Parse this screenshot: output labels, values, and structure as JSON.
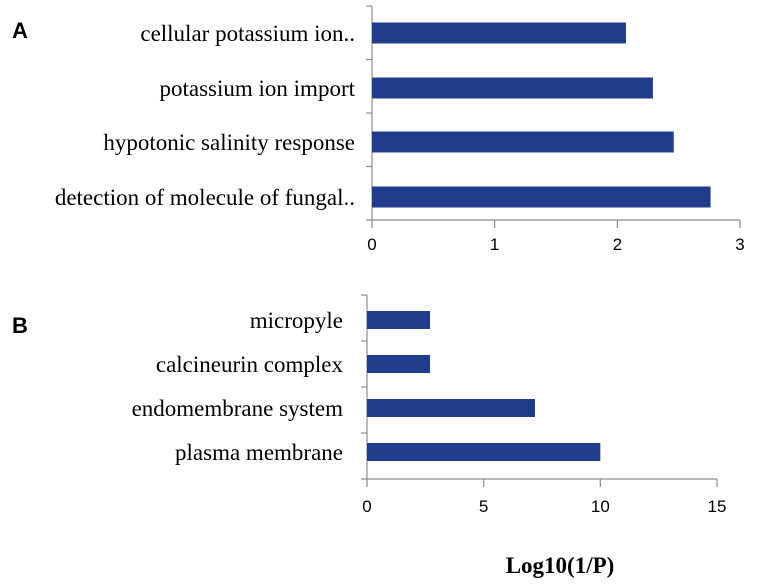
{
  "colors": {
    "bar": "#1f3d8a",
    "axis": "#8c8c8c"
  },
  "xlabel": "Log10(1/P)",
  "chart_data": [
    {
      "panel": "A",
      "type": "bar",
      "orientation": "horizontal",
      "categories": [
        "cellular potassium ion..",
        "potassium ion import",
        "hypotonic salinity response",
        "detection of molecule of fungal.."
      ],
      "values": [
        2.07,
        2.29,
        2.46,
        2.76
      ],
      "xlim": [
        0,
        3
      ],
      "xticks": [
        0,
        1,
        2,
        3
      ],
      "grid": false
    },
    {
      "panel": "B",
      "type": "bar",
      "orientation": "horizontal",
      "categories": [
        "micropyle",
        "calcineurin complex",
        "endomembrane system",
        "plasma membrane"
      ],
      "values": [
        2.7,
        2.7,
        7.2,
        10.0
      ],
      "xlim": [
        0,
        15
      ],
      "xticks": [
        0,
        5,
        10,
        15
      ],
      "grid": false
    }
  ]
}
